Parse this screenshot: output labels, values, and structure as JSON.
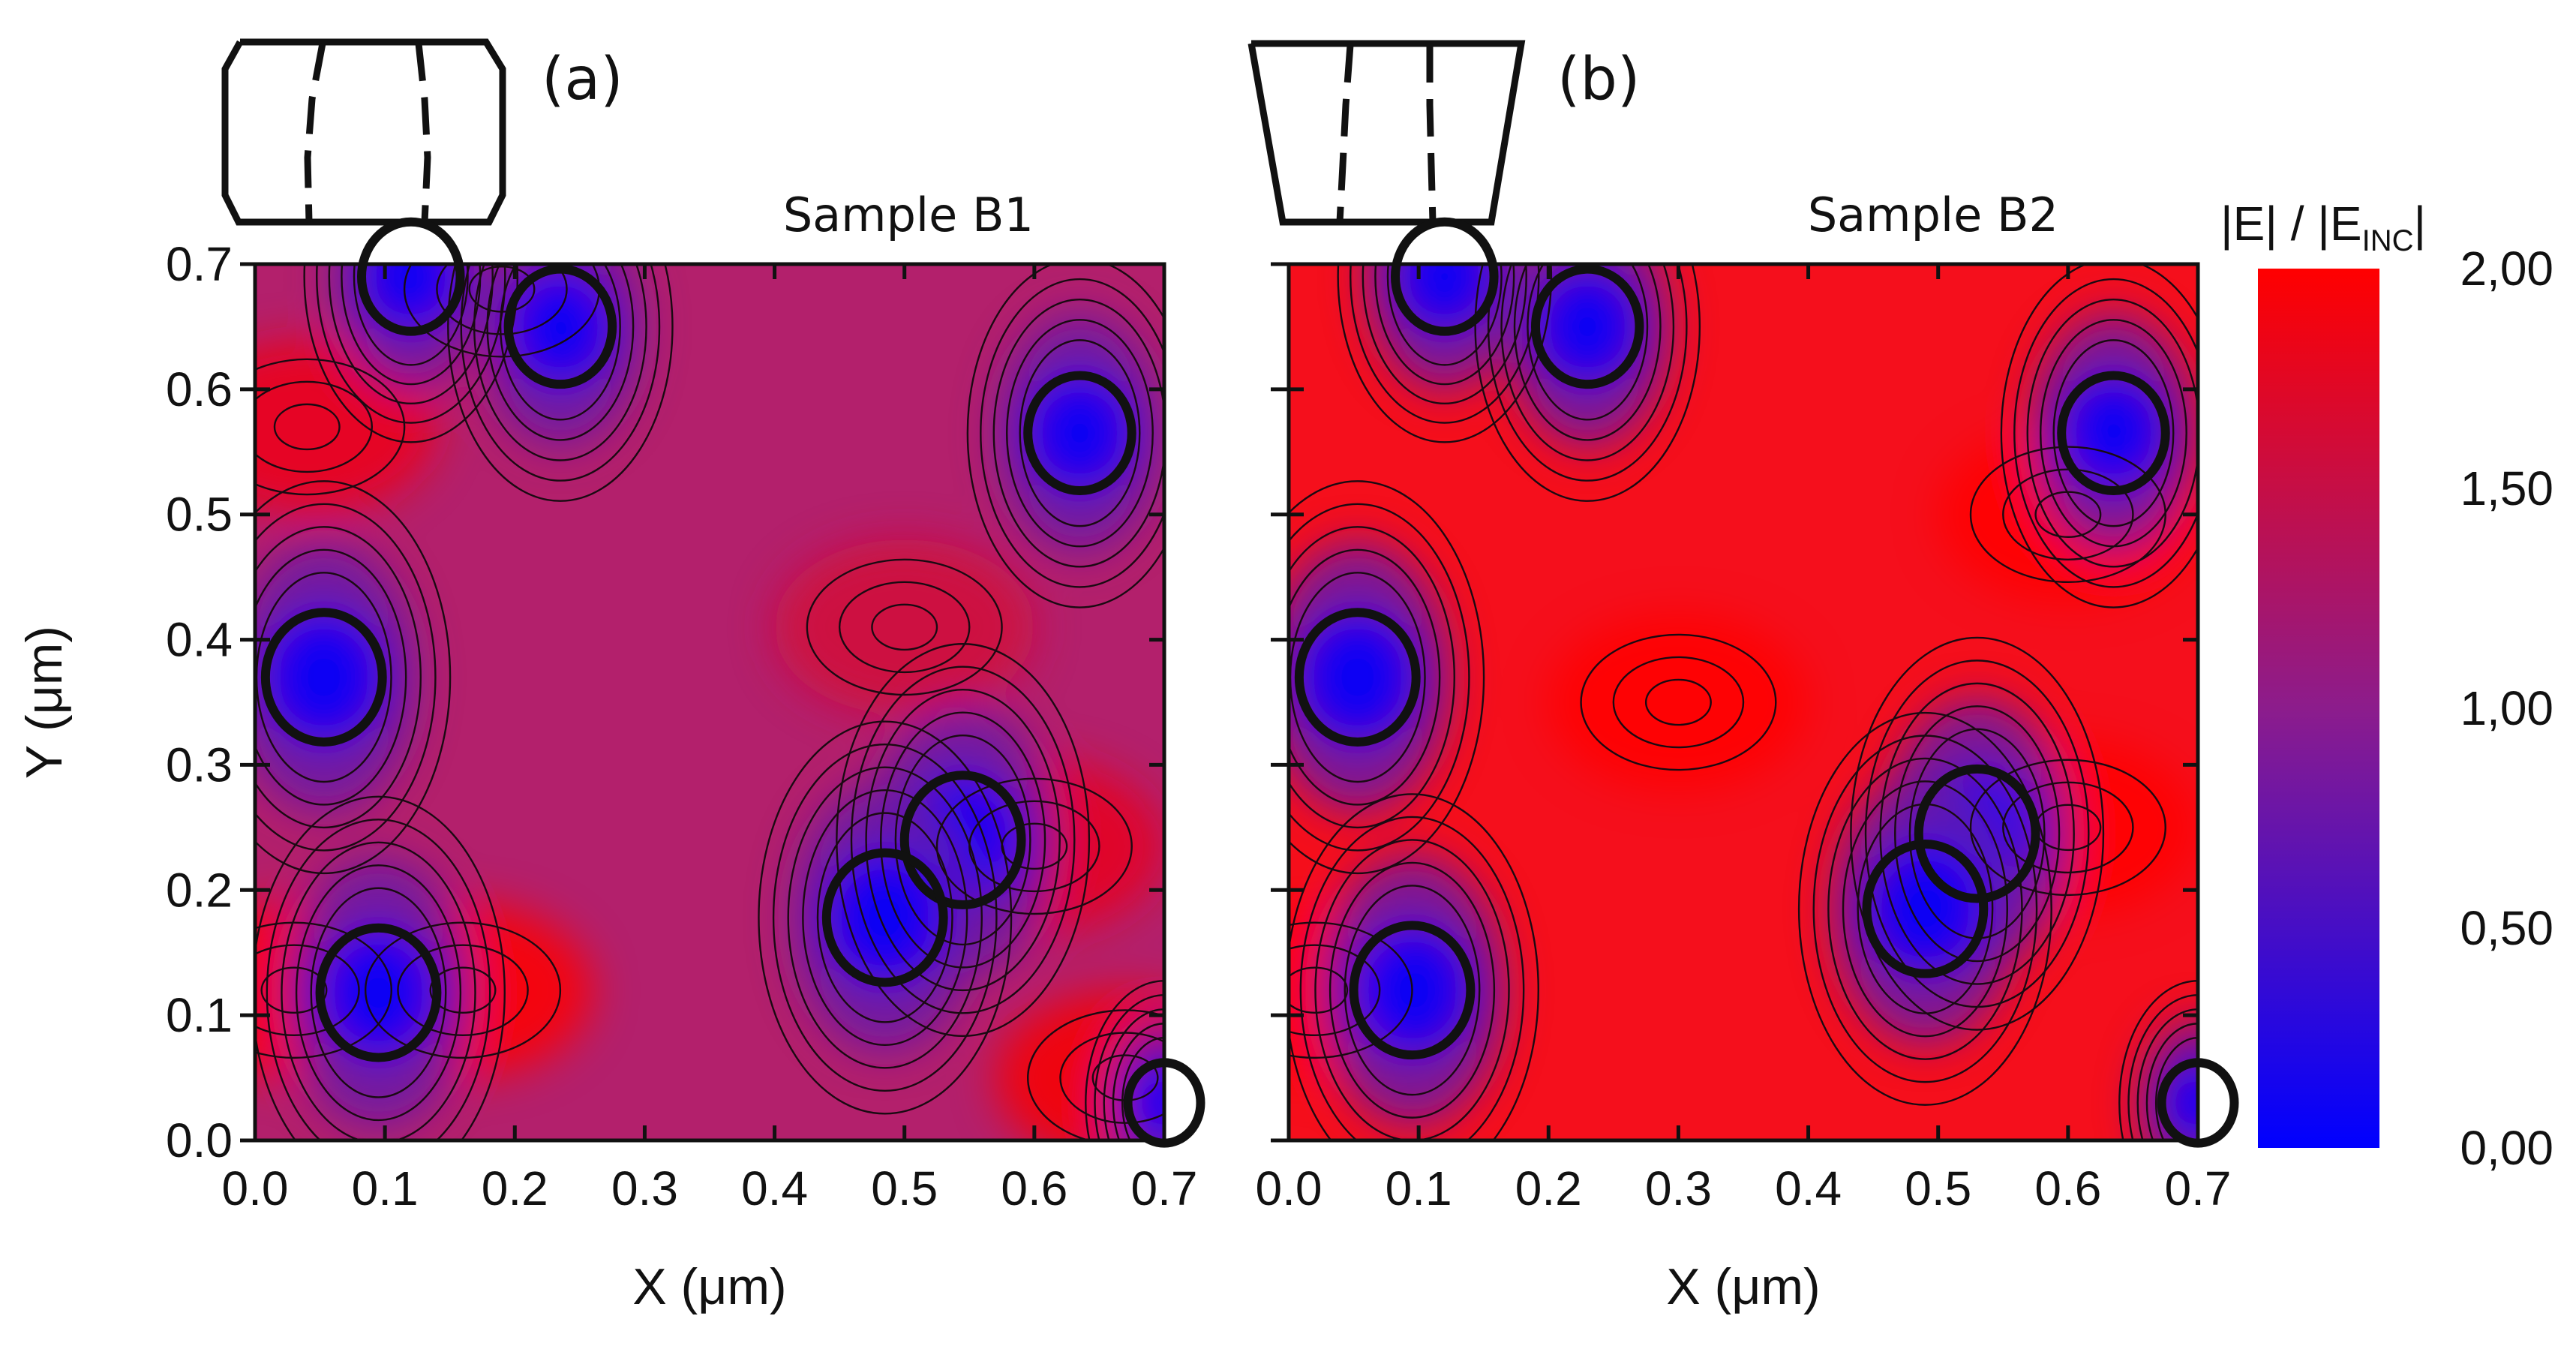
{
  "chart_data": [
    {
      "type": "heatmap",
      "panel_label": "(a)",
      "title": "Sample B1",
      "xlabel": "X (μm)",
      "ylabel": "Y (μm)",
      "xlim": [
        0.0,
        0.7
      ],
      "ylim": [
        0.0,
        0.7
      ],
      "xticks": [
        "0.0",
        "0.1",
        "0.2",
        "0.3",
        "0.4",
        "0.5",
        "0.6",
        "0.7"
      ],
      "yticks": [
        "0.0",
        "0.1",
        "0.2",
        "0.3",
        "0.4",
        "0.5",
        "0.6",
        "0.7"
      ],
      "background_value": 1.35,
      "scatterers": [
        {
          "x": 0.12,
          "y": 0.69,
          "r": 0.038
        },
        {
          "x": 0.235,
          "y": 0.65,
          "r": 0.04
        },
        {
          "x": 0.635,
          "y": 0.565,
          "r": 0.04
        },
        {
          "x": 0.053,
          "y": 0.37,
          "r": 0.045
        },
        {
          "x": 0.095,
          "y": 0.118,
          "r": 0.045
        },
        {
          "x": 0.545,
          "y": 0.24,
          "r": 0.045
        },
        {
          "x": 0.485,
          "y": 0.178,
          "r": 0.045
        },
        {
          "x": 0.7,
          "y": 0.03,
          "r": 0.028
        }
      ],
      "hot_spots": [
        {
          "x": 0.04,
          "y": 0.57,
          "value": 1.85
        },
        {
          "x": 0.03,
          "y": 0.12,
          "value": 2.0
        },
        {
          "x": 0.16,
          "y": 0.12,
          "value": 2.0
        },
        {
          "x": 0.67,
          "y": 0.05,
          "value": 1.95
        },
        {
          "x": 0.6,
          "y": 0.235,
          "value": 1.8
        },
        {
          "x": 0.5,
          "y": 0.41,
          "value": 1.6
        },
        {
          "x": 0.19,
          "y": 0.68,
          "value": 1.8
        }
      ]
    },
    {
      "type": "heatmap",
      "panel_label": "(b)",
      "title": "Sample B2",
      "xlabel": "X (μm)",
      "ylabel": "",
      "xlim": [
        0.0,
        0.7
      ],
      "ylim": [
        0.0,
        0.7
      ],
      "xticks": [
        "0.0",
        "0.1",
        "0.2",
        "0.3",
        "0.4",
        "0.5",
        "0.6",
        "0.7"
      ],
      "yticks": [],
      "background_value": 1.85,
      "scatterers": [
        {
          "x": 0.12,
          "y": 0.69,
          "r": 0.038
        },
        {
          "x": 0.23,
          "y": 0.65,
          "r": 0.04
        },
        {
          "x": 0.635,
          "y": 0.565,
          "r": 0.04
        },
        {
          "x": 0.053,
          "y": 0.37,
          "r": 0.045
        },
        {
          "x": 0.095,
          "y": 0.12,
          "r": 0.045
        },
        {
          "x": 0.53,
          "y": 0.245,
          "r": 0.045
        },
        {
          "x": 0.49,
          "y": 0.185,
          "r": 0.045
        },
        {
          "x": 0.7,
          "y": 0.03,
          "r": 0.028
        }
      ],
      "hot_spots": [
        {
          "x": 0.3,
          "y": 0.35,
          "value": 2.0
        },
        {
          "x": 0.6,
          "y": 0.25,
          "value": 2.0
        },
        {
          "x": 0.02,
          "y": 0.12,
          "value": 2.0
        },
        {
          "x": 0.6,
          "y": 0.5,
          "value": 2.0
        }
      ]
    }
  ],
  "colorbar": {
    "title_main": "|E| / |E",
    "title_sub": "INC",
    "title_end": "|",
    "min": 0.0,
    "max": 2.0,
    "ticks": [
      {
        "value": 2.0,
        "label": "2,00"
      },
      {
        "value": 1.5,
        "label": "1,50"
      },
      {
        "value": 1.0,
        "label": "1,00"
      },
      {
        "value": 0.5,
        "label": "0,50"
      },
      {
        "value": 0.0,
        "label": "0,00"
      }
    ],
    "colors": {
      "low": "#0000ff",
      "mid": "#8c1c8c",
      "high": "#ff0000"
    }
  }
}
